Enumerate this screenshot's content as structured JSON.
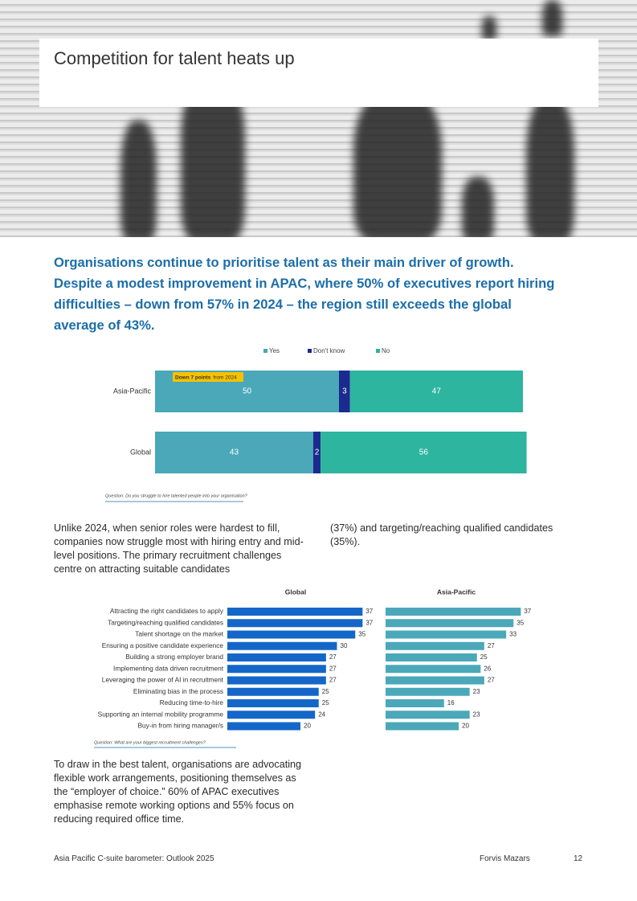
{
  "header": {
    "title": "Competition for talent heats up"
  },
  "intro": "Organisations continue to prioritise talent as their main driver of growth. Despite a modest improvement in APAC, where 50% of executives report hiring difficulties – down from 57% in 2024 – the region still exceeds the global average of 43%.",
  "chart_data": [
    {
      "type": "bar",
      "orientation": "horizontal",
      "stacked": true,
      "categories": [
        "Asia-Pacific",
        "Global"
      ],
      "series": [
        {
          "name": "Yes",
          "color": "#4aa8b9",
          "values": [
            50,
            43
          ]
        },
        {
          "name": "Don't know",
          "color": "#1b2a8e",
          "values": [
            3,
            2
          ]
        },
        {
          "name": "No",
          "color": "#2db59f",
          "values": [
            47,
            56
          ]
        }
      ],
      "xlim": [
        0,
        100
      ],
      "annotations": [
        "Down 7 points",
        "from 2024"
      ],
      "note": "Question: Do you struggle to hire talented people into your organisation?"
    },
    {
      "type": "bar",
      "orientation": "horizontal",
      "panels": true,
      "categories": [
        "Attracting the right candidates to apply",
        "Targeting/reaching qualified candidates",
        "Talent shortage on the market",
        "Ensuring a positive candidate experience",
        "Building a strong employer brand",
        "Implementing data driven recruitment",
        "Leveraging the power of AI in recruitment",
        "Eliminating bias in the process",
        "Reducing time-to-hire",
        "Supporting an internal mobility programme",
        "Buy-in from hiring manager/s"
      ],
      "series": [
        {
          "name": "Global",
          "color": "#1467c9",
          "values": [
            37,
            37,
            35,
            30,
            27,
            27,
            27,
            25,
            25,
            24,
            20
          ]
        },
        {
          "name": "Asia-Pacific",
          "color": "#4aa8b9",
          "values": [
            37,
            35,
            33,
            27,
            25,
            26,
            27,
            23,
            16,
            23,
            20
          ]
        }
      ],
      "xlim": [
        0,
        40
      ],
      "note": "Question: What are your biggest recruitment challenges?"
    }
  ],
  "body": [
    [
      "Unlike 2024, when senior roles were hardest to fill, companies now struggle most with hiring entry and mid-level positions. The primary recruitment challenges centre on attracting suitable candidates",
      "(37%) and targeting/reaching qualified candidates (35%)."
    ],
    [
      "To draw in the best talent, organisations are advocating flexible work arrangements, positioning themselves as the “employer of choice.” 60% of APAC executives emphasise remote working options and 55% focus on reducing required office time."
    ]
  ],
  "footer": {
    "left": "Asia Pacific C-suite barometer: Outlook 2025",
    "brand": "Forvis Mazars",
    "page": "12"
  }
}
